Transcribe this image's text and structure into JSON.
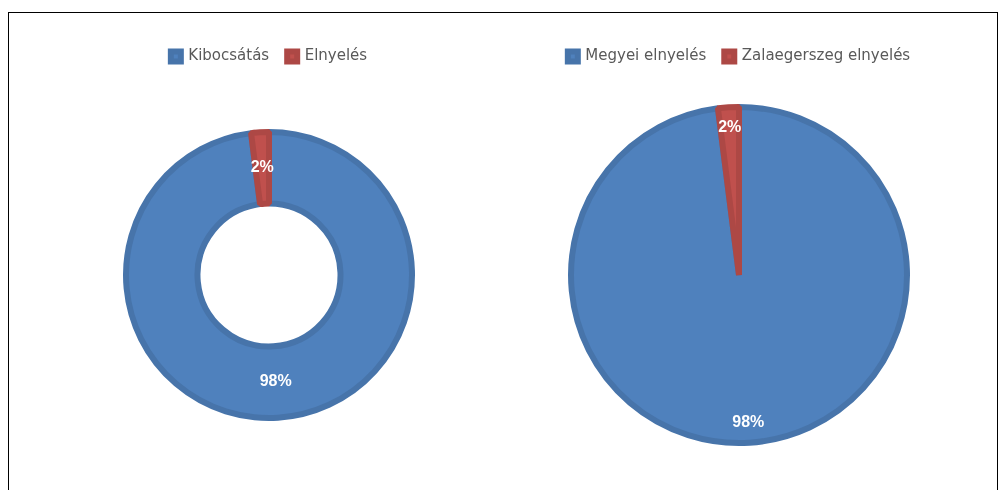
{
  "chart_data": [
    {
      "type": "donut",
      "categories": [
        "Kibocsátás",
        "Elnyelés"
      ],
      "values": [
        98,
        2
      ],
      "colors": [
        "#4f81bd",
        "#c0504d"
      ],
      "legend": "top",
      "value_labels": [
        "98%",
        "2%"
      ]
    },
    {
      "type": "pie",
      "categories": [
        "Megyei elnyelés",
        "Zalaegerszeg elnyelés"
      ],
      "values": [
        98,
        2
      ],
      "colors": [
        "#4f81bd",
        "#c0504d"
      ],
      "legend": "top",
      "value_labels": [
        "98%",
        "2%"
      ]
    }
  ]
}
